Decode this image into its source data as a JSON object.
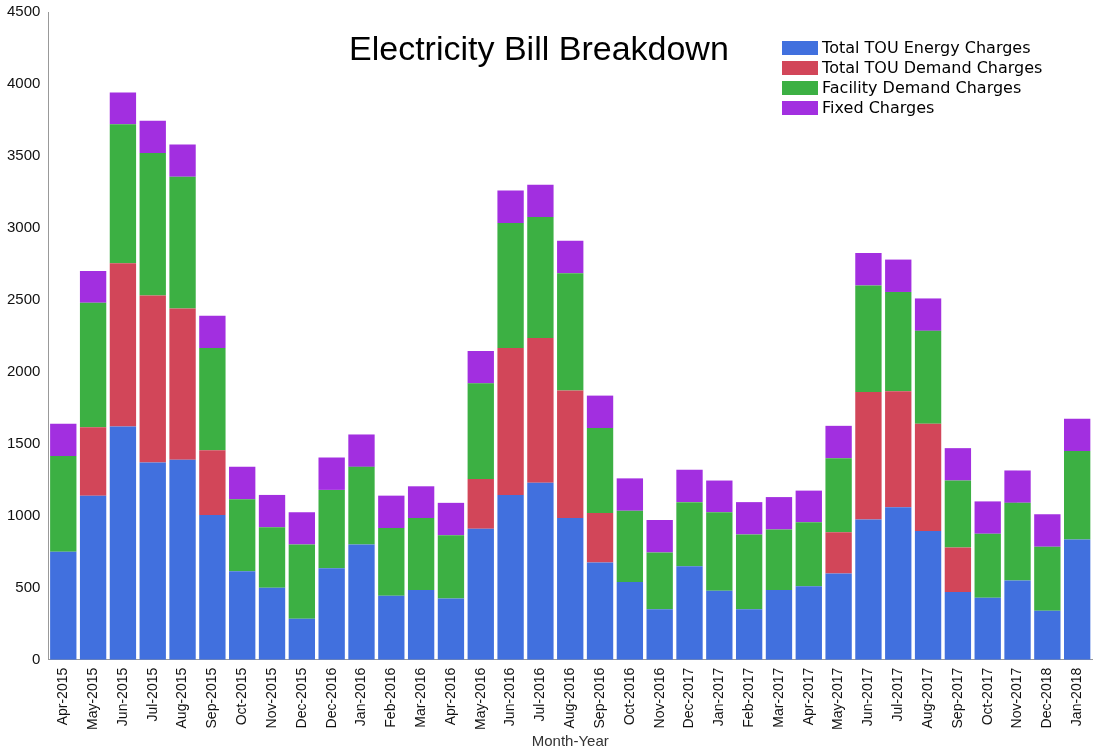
{
  "chart_data": {
    "type": "bar",
    "stacked": true,
    "title": "Electricity Bill Breakdown",
    "xlabel": "Month-Year",
    "categories": [
      "Apr-2015",
      "May-2015",
      "Jun-2015",
      "Jul-2015",
      "Aug-2015",
      "Sep-2015",
      "Oct-2015",
      "Nov-2015",
      "Dec-2015",
      "Dec-2016",
      "Jan-2016",
      "Feb-2016",
      "Mar-2016",
      "Apr-2016",
      "May-2016",
      "Jun-2016",
      "Jul-2016",
      "Aug-2016",
      "Sep-2016",
      "Oct-2016",
      "Nov-2016",
      "Dec-2017",
      "Jan-2017",
      "Feb-2017",
      "Mar-2017",
      "Apr-2017",
      "May-2017",
      "Jun-2017",
      "Jul-2017",
      "Aug-2017",
      "Sep-2017",
      "Oct-2017",
      "Nov-2017",
      "Dec-2018",
      "Jan-2018"
    ],
    "series": [
      {
        "name": "Total TOU Energy Charges",
        "color": "#4170de",
        "values": [
          750,
          1140,
          1620,
          1370,
          1390,
          1005,
          615,
          500,
          285,
          635,
          800,
          445,
          485,
          425,
          910,
          1145,
          1230,
          985,
          675,
          540,
          350,
          650,
          480,
          350,
          485,
          510,
          600,
          975,
          1060,
          895,
          470,
          430,
          550,
          340,
          835
        ]
      },
      {
        "name": "Total TOU Demand Charges",
        "color": "#d24659",
        "values": [
          0,
          475,
          1135,
          1160,
          1050,
          450,
          0,
          0,
          0,
          0,
          0,
          0,
          0,
          0,
          345,
          1020,
          1005,
          885,
          345,
          0,
          0,
          0,
          0,
          0,
          0,
          0,
          285,
          885,
          805,
          745,
          310,
          0,
          0,
          0,
          0
        ]
      },
      {
        "name": "Facility Demand Charges",
        "color": "#3cb043",
        "values": [
          665,
          865,
          965,
          990,
          915,
          710,
          500,
          420,
          515,
          545,
          540,
          470,
          500,
          440,
          665,
          870,
          840,
          815,
          590,
          495,
          395,
          445,
          545,
          520,
          420,
          445,
          515,
          740,
          690,
          645,
          465,
          445,
          540,
          445,
          615
        ]
      },
      {
        "name": "Fixed Charges",
        "color": "#a22fe0",
        "values": [
          225,
          220,
          220,
          225,
          225,
          225,
          225,
          225,
          225,
          225,
          225,
          225,
          220,
          225,
          225,
          225,
          225,
          225,
          225,
          225,
          225,
          225,
          220,
          225,
          225,
          220,
          225,
          225,
          225,
          225,
          225,
          225,
          225,
          225,
          225
        ]
      }
    ],
    "ylim": [
      0,
      4500
    ],
    "yticks": [
      0,
      500,
      1000,
      1500,
      2000,
      2500,
      3000,
      3500,
      4000,
      4500
    ],
    "grid": false,
    "legend": "top right"
  }
}
